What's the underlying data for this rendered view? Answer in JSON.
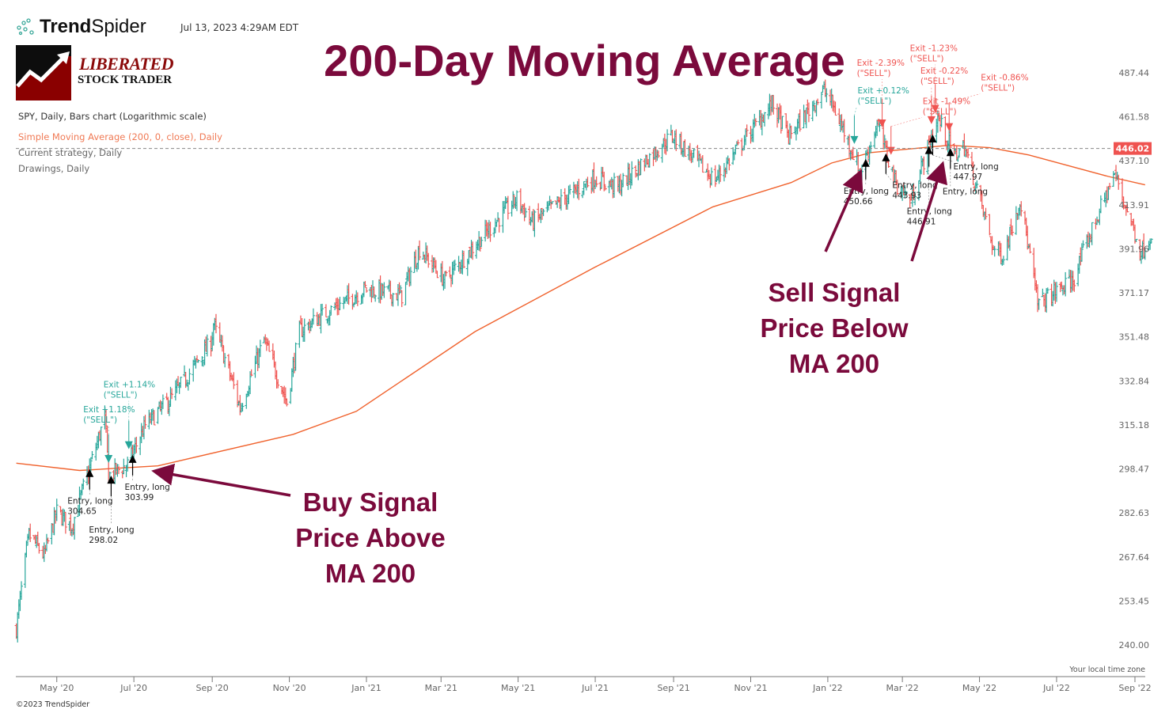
{
  "header": {
    "brand": {
      "bold": "Trend",
      "regular": "Spider"
    },
    "timestamp": "Jul 13, 2023 4:29AM EDT",
    "logo": {
      "line1": "LIBERATED",
      "line2": "STOCK TRADER"
    },
    "title": "200-Day Moving Average"
  },
  "legend": {
    "main": "SPY, Daily, Bars chart (Logarithmic scale)",
    "sma": "Simple Moving Average (200, 0, close), Daily",
    "strategy": "Current strategy, Daily",
    "drawings": "Drawings, Daily"
  },
  "callouts": {
    "buy": [
      "Buy Signal",
      "Price Above",
      "MA 200"
    ],
    "sell": [
      "Sell Signal",
      "Price Below",
      "MA 200"
    ]
  },
  "footer": {
    "copyright": "©2023 TrendSpider",
    "timezone": "Your local time zone"
  },
  "colors": {
    "up": "#26a69a",
    "down": "#ef5350",
    "sma": "#f0622d",
    "annotation": "#7b0a3c",
    "price_badge": "#ef5350"
  },
  "chart_data": {
    "type": "bar",
    "symbol": "SPY",
    "scale": "log",
    "y_ticks": [
      "487.44",
      "461.58",
      "437.10",
      "413.91",
      "391.96",
      "371.17",
      "351.48",
      "332.84",
      "315.18",
      "298.47",
      "282.63",
      "267.64",
      "253.45",
      "240.00"
    ],
    "x_ticks": [
      {
        "label": "May '20",
        "date": "2020-05-01"
      },
      {
        "label": "Jul '20",
        "date": "2020-07-01"
      },
      {
        "label": "Sep '20",
        "date": "2020-09-01"
      },
      {
        "label": "Nov '20",
        "date": "2020-11-01"
      },
      {
        "label": "Jan '21",
        "date": "2021-01-01"
      },
      {
        "label": "Mar '21",
        "date": "2021-03-01"
      },
      {
        "label": "May '21",
        "date": "2021-05-01"
      },
      {
        "label": "Jul '21",
        "date": "2021-07-01"
      },
      {
        "label": "Sep '21",
        "date": "2021-09-01"
      },
      {
        "label": "Nov '21",
        "date": "2021-11-01"
      },
      {
        "label": "Jan '22",
        "date": "2022-01-01"
      },
      {
        "label": "Mar '22",
        "date": "2022-03-01"
      },
      {
        "label": "May '22",
        "date": "2022-05-01"
      },
      {
        "label": "Jul '22",
        "date": "2022-07-01"
      },
      {
        "label": "Sep '22",
        "date": "2022-09-01"
      }
    ],
    "x_range": [
      "2020-03-30",
      "2022-09-14"
    ],
    "y_range": [
      240.0,
      487.44
    ],
    "current_price": "446.02",
    "price_path": [
      [
        "2020-03-30",
        245
      ],
      [
        "2020-04-09",
        275
      ],
      [
        "2020-04-21",
        268
      ],
      [
        "2020-05-01",
        283
      ],
      [
        "2020-05-13",
        278
      ],
      [
        "2020-05-29",
        302
      ],
      [
        "2020-06-08",
        318
      ],
      [
        "2020-06-11",
        296
      ],
      [
        "2020-06-26",
        300
      ],
      [
        "2020-07-10",
        315
      ],
      [
        "2020-07-31",
        326
      ],
      [
        "2020-08-14",
        336
      ],
      [
        "2020-08-31",
        349
      ],
      [
        "2020-09-02",
        357
      ],
      [
        "2020-09-23",
        322
      ],
      [
        "2020-10-12",
        350
      ],
      [
        "2020-10-30",
        324
      ],
      [
        "2020-11-09",
        354
      ],
      [
        "2020-11-30",
        362
      ],
      [
        "2020-12-31",
        373
      ],
      [
        "2021-01-29",
        370
      ],
      [
        "2021-02-12",
        392
      ],
      [
        "2021-03-04",
        377
      ],
      [
        "2021-03-31",
        396
      ],
      [
        "2021-04-30",
        417
      ],
      [
        "2021-05-12",
        405
      ],
      [
        "2021-06-30",
        428
      ],
      [
        "2021-07-19",
        423
      ],
      [
        "2021-08-31",
        451
      ],
      [
        "2021-09-30",
        429
      ],
      [
        "2021-10-04",
        427
      ],
      [
        "2021-11-18",
        469
      ],
      [
        "2021-12-01",
        450
      ],
      [
        "2021-12-29",
        477
      ],
      [
        "2022-01-05",
        468
      ],
      [
        "2022-01-27",
        431
      ],
      [
        "2022-02-09",
        457
      ],
      [
        "2022-02-24",
        425
      ],
      [
        "2022-03-08",
        416
      ],
      [
        "2022-03-29",
        461
      ],
      [
        "2022-04-11",
        440
      ],
      [
        "2022-04-19",
        445
      ],
      [
        "2022-05-12",
        392
      ],
      [
        "2022-05-20",
        389
      ],
      [
        "2022-06-02",
        417
      ],
      [
        "2022-06-16",
        366
      ],
      [
        "2022-07-14",
        377
      ],
      [
        "2022-08-16",
        430
      ],
      [
        "2022-08-29",
        405
      ],
      [
        "2022-09-06",
        390
      ],
      [
        "2022-09-14",
        400
      ]
    ],
    "sma_200": [
      [
        "2020-03-30",
        300.6
      ],
      [
        "2020-05-19",
        297.9
      ],
      [
        "2020-07-20",
        299.6
      ],
      [
        "2020-11-04",
        311.5
      ],
      [
        "2020-12-24",
        320.5
      ],
      [
        "2021-03-28",
        353.8
      ],
      [
        "2021-06-30",
        382.9
      ],
      [
        "2021-10-02",
        412.9
      ],
      [
        "2021-12-03",
        425.5
      ],
      [
        "2022-01-04",
        435.9
      ],
      [
        "2022-02-04",
        441.6
      ],
      [
        "2022-04-07",
        445.6
      ],
      [
        "2022-05-09",
        444.3
      ],
      [
        "2022-06-09",
        440.3
      ],
      [
        "2022-08-11",
        428.7
      ],
      [
        "2022-09-09",
        424.3
      ]
    ],
    "entries": [
      {
        "date": "2020-05-27",
        "label": "Entry, long",
        "price": "304.65"
      },
      {
        "date": "2020-06-13",
        "label": "Entry, long",
        "price": "298.02"
      },
      {
        "date": "2020-06-30",
        "label": "Entry, long",
        "price": "303.99"
      },
      {
        "date": "2022-01-31",
        "label": "Entry, long",
        "price": "450.66"
      },
      {
        "date": "2022-02-16",
        "label": "Entry, long",
        "price": "443.93"
      },
      {
        "date": "2022-03-22",
        "label": "Entry, long",
        "price": "446.91"
      },
      {
        "date": "2022-03-25",
        "label": "Entry, long",
        "price": "447.97"
      },
      {
        "date": "2022-04-08",
        "label": "Entry, long",
        "price": ""
      }
    ],
    "exits": [
      {
        "date": "2020-06-11",
        "label": "Exit +1.18%",
        "signal": "(\"SELL\")",
        "result": "up"
      },
      {
        "date": "2020-06-27",
        "label": "Exit +1.14%",
        "signal": "(\"SELL\")",
        "result": "up"
      },
      {
        "date": "2022-01-22",
        "label": "Exit +0.12%",
        "signal": "(\"SELL\")",
        "result": "up"
      },
      {
        "date": "2022-02-13",
        "label": "Exit -2.39%",
        "signal": "(\"SELL\")",
        "result": "down"
      },
      {
        "date": "2022-02-20",
        "label": "Exit -1.49%",
        "signal": "(\"SELL\")",
        "result": "down"
      },
      {
        "date": "2022-03-24",
        "label": "Exit -0.22%",
        "signal": "(\"SELL\")",
        "result": "down"
      },
      {
        "date": "2022-03-27",
        "label": "Exit -1.23%",
        "signal": "(\"SELL\")",
        "result": "down"
      },
      {
        "date": "2022-04-07",
        "label": "Exit -0.86%",
        "signal": "(\"SELL\")",
        "result": "down"
      }
    ]
  }
}
